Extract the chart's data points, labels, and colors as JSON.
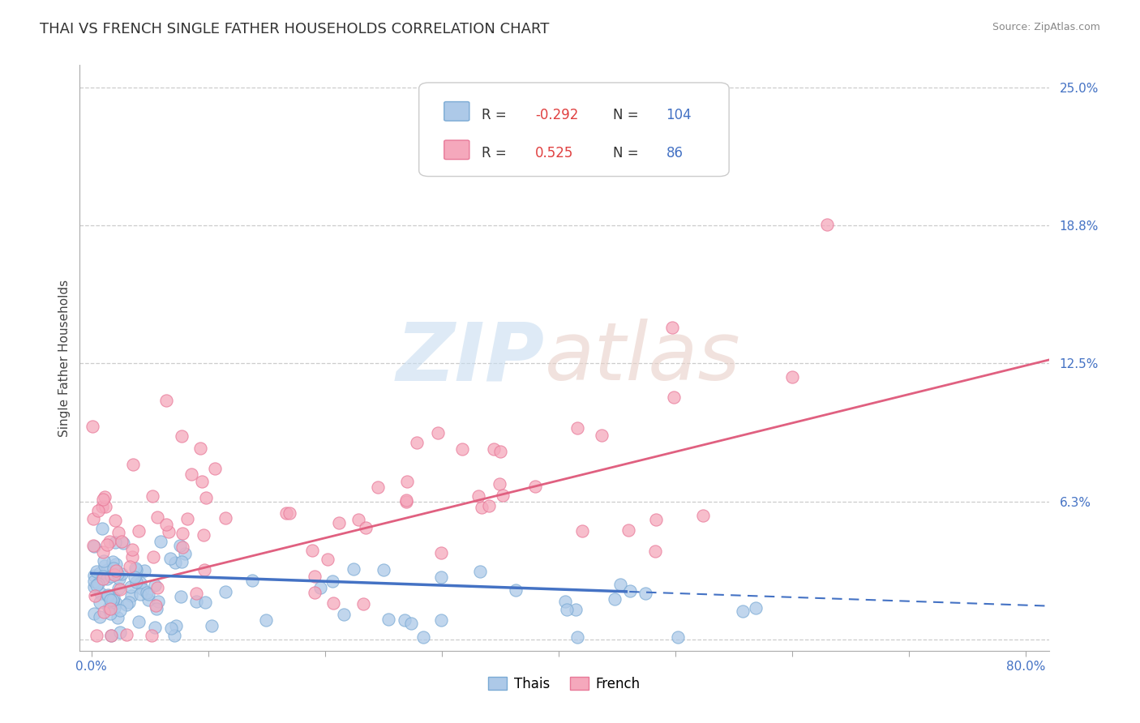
{
  "title": "THAI VS FRENCH SINGLE FATHER HOUSEHOLDS CORRELATION CHART",
  "source": "Source: ZipAtlas.com",
  "ylabel": "Single Father Households",
  "xlabel": "",
  "xlim": [
    -0.01,
    0.82
  ],
  "ylim": [
    -0.005,
    0.26
  ],
  "yticks": [
    0.0,
    0.0625,
    0.125,
    0.1875,
    0.25
  ],
  "ytick_labels": [
    "",
    "6.3%",
    "12.5%",
    "18.8%",
    "25.0%"
  ],
  "xticks": [
    0.0,
    0.1,
    0.2,
    0.3,
    0.4,
    0.5,
    0.6,
    0.7,
    0.8
  ],
  "xtick_labels": [
    "0.0%",
    "",
    "",
    "",
    "",
    "",
    "",
    "",
    "80.0%"
  ],
  "thai_R": -0.292,
  "thai_N": 104,
  "french_R": 0.525,
  "french_N": 86,
  "thai_color": "#adc9e8",
  "french_color": "#f5a8bc",
  "thai_edge_color": "#7aaad4",
  "french_edge_color": "#e87898",
  "thai_line_color": "#4472c4",
  "french_line_color": "#e06080",
  "legend_labels": [
    "Thais",
    "French"
  ],
  "title_fontsize": 13,
  "tick_label_color": "#4472c4",
  "background_color": "#ffffff",
  "grid_color": "#cccccc",
  "grid_style": "--",
  "thai_trend_intercept": 0.03,
  "thai_trend_slope": -0.018,
  "french_trend_intercept": 0.02,
  "french_trend_slope": 0.13
}
